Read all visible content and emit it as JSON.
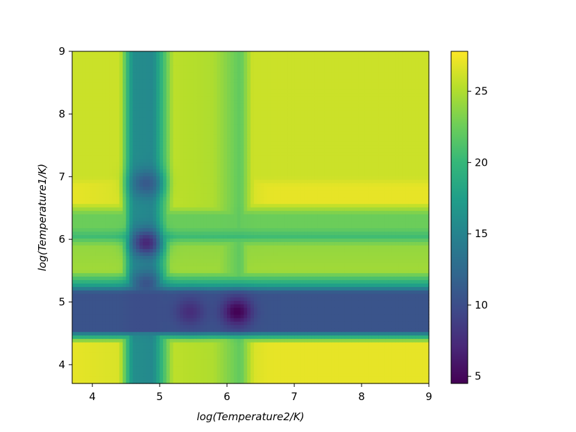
{
  "chart_data": {
    "type": "heatmap",
    "title": "",
    "xlabel": "log(Temperature2/K)",
    "ylabel": "log(Temperature1/K)",
    "xlim": [
      3.7,
      9.0
    ],
    "ylim": [
      3.7,
      9.0
    ],
    "xticks": [
      4,
      5,
      6,
      7,
      8,
      9
    ],
    "yticks": [
      4,
      5,
      6,
      7,
      8,
      9
    ],
    "colormap": "viridis",
    "colorbar": {
      "range": [
        4.5,
        27.8
      ],
      "ticks": [
        5,
        10,
        15,
        20,
        25
      ]
    },
    "grid": false,
    "x_profile": {
      "x": [
        3.7,
        4.4,
        4.6,
        4.9,
        5.2,
        5.8,
        6.2,
        6.4,
        6.8,
        9.0
      ],
      "values": [
        27.0,
        26.5,
        16.0,
        15.5,
        25.5,
        25.0,
        22.0,
        26.5,
        27.5,
        27.5
      ]
    },
    "y_profile": {
      "y": [
        3.7,
        4.35,
        4.45,
        4.55,
        5.15,
        5.28,
        5.5,
        5.9,
        6.05,
        6.2,
        6.4,
        6.6,
        6.85,
        7.0,
        9.0
      ],
      "values": [
        27.0,
        27.0,
        19.0,
        10.5,
        10.5,
        18.0,
        24.5,
        24.0,
        20.5,
        22.5,
        22.5,
        27.0,
        27.0,
        26.0,
        26.0
      ]
    },
    "minima": [
      {
        "x": 6.15,
        "y": 4.85,
        "value": 4.5
      },
      {
        "x": 5.45,
        "y": 4.85,
        "value": 7.5
      },
      {
        "x": 4.8,
        "y": 5.95,
        "value": 7.0
      },
      {
        "x": 4.8,
        "y": 6.9,
        "value": 11.0
      },
      {
        "x": 4.8,
        "y": 5.3,
        "value": 10.5
      }
    ]
  }
}
